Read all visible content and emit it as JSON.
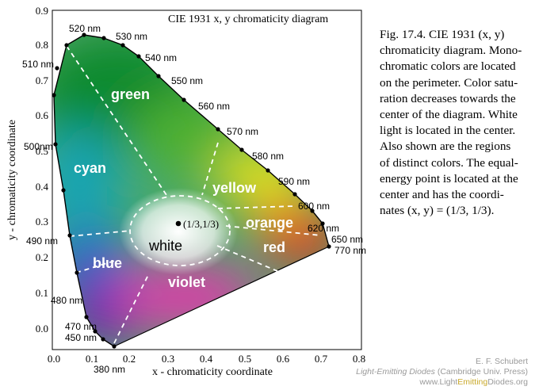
{
  "figure": {
    "title": "CIE 1931 x, y chromaticity diagram",
    "x_axis_label": "x - chromaticity coordinate",
    "y_axis_label": "y - chromaticity coordinate",
    "x_ticks": [
      "0.0",
      "0.1",
      "0.2",
      "0.3",
      "0.4",
      "0.5",
      "0.6",
      "0.7",
      "0.8"
    ],
    "y_ticks": [
      "0.0",
      "0.1",
      "0.2",
      "0.3",
      "0.4",
      "0.5",
      "0.6",
      "0.7",
      "0.8",
      "0.9"
    ],
    "white_point_label": "(1/3,1/3)",
    "regions": {
      "green": "green",
      "cyan": "cyan",
      "blue": "blue",
      "white": "white",
      "violet": "violet",
      "yellow": "yellow",
      "orange": "orange",
      "red": "red"
    },
    "wavelengths": {
      "nm380": "380 nm",
      "nm450": "450 nm",
      "nm470": "470 nm",
      "nm480": "480 nm",
      "nm490": "490 nm",
      "nm500": "500nm",
      "nm510": "510 nm",
      "nm520": "520 nm",
      "nm530": "530 nm",
      "nm540": "540 nm",
      "nm550": "550 nm",
      "nm560": "560 nm",
      "nm570": "570 nm",
      "nm580": "580 nm",
      "nm590": "590 nm",
      "nm600": "600 nm",
      "nm620": "620 nm",
      "nm650": "650 nm",
      "nm770": "770 nm"
    },
    "colors": {
      "green": "#1a9a3a",
      "cyan": "#2ab0b8",
      "blue": "#2a5cc8",
      "violet": "#b040b0",
      "red": "#e82a2a",
      "orange": "#f08020",
      "yellow": "#e8e020",
      "white": "#f8f8f8"
    }
  },
  "caption": {
    "line1": "Fig. 17.4. CIE 1931 (x, y)",
    "line2": "chromaticity diagram. Mono-",
    "line3": "chromatic colors are located",
    "line4": "on the perimeter. Color satu-",
    "line5": "ration decreases towards the",
    "line6": "center of the diagram. White",
    "line7": "light is located in the center.",
    "line8": "Also shown are the regions",
    "line9": "of distinct colors. The equal-",
    "line10": "energy point is located at the",
    "line11": "center and has the coordi-",
    "line12": "nates (x, y) = (1/3, 1/3)."
  },
  "credits": {
    "author": "E. F. Schubert",
    "book_title": "Light-Emitting Diodes",
    "publisher": "(Cambridge Univ. Press)",
    "site_prefix": "www.",
    "site_light": "Light",
    "site_emitting": "Emitting",
    "site_diodes": "Diodes",
    "site_suffix": ".org"
  }
}
